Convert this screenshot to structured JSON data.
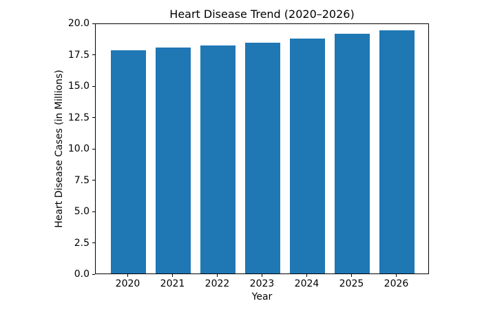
{
  "chart_data": {
    "type": "bar",
    "title": "Heart Disease Trend (2020–2026)",
    "xlabel": "Year",
    "ylabel": "Heart Disease Cases (in Millions)",
    "categories": [
      "2020",
      "2021",
      "2022",
      "2023",
      "2024",
      "2025",
      "2026"
    ],
    "values": [
      17.9,
      18.1,
      18.3,
      18.5,
      18.85,
      19.2,
      19.5
    ],
    "ylim": [
      0,
      20
    ],
    "yticks": [
      0.0,
      2.5,
      5.0,
      7.5,
      10.0,
      12.5,
      15.0,
      17.5,
      20.0
    ],
    "ytick_labels": [
      "0.0",
      "2.5",
      "5.0",
      "7.5",
      "10.0",
      "12.5",
      "15.0",
      "17.5",
      "20.0"
    ],
    "grid": false,
    "legend": "none",
    "colors": {
      "bar": "#1f77b4",
      "background": "#ffffff",
      "text": "#000000",
      "spine": "#000000"
    }
  }
}
